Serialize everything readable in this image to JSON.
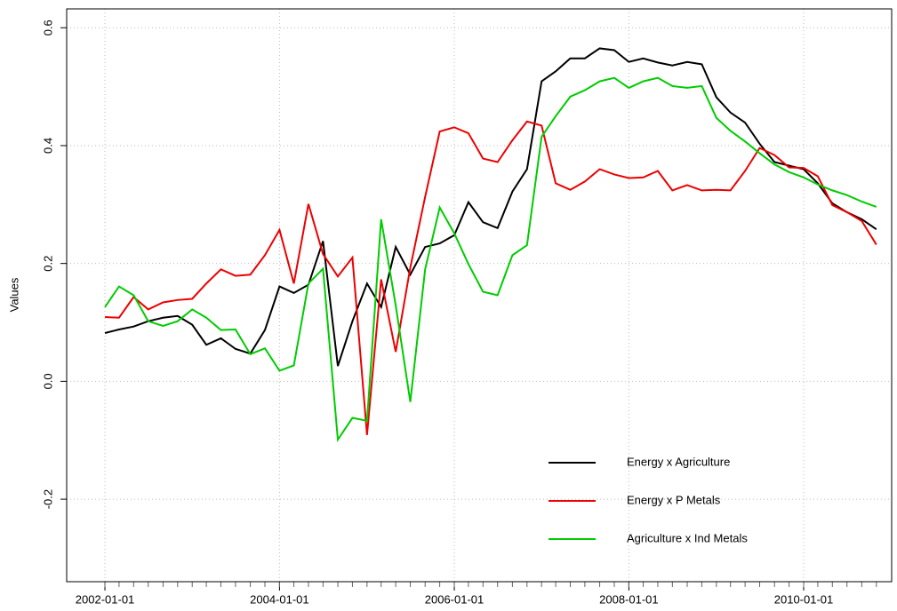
{
  "chart_data": {
    "type": "line",
    "y_label": "Values",
    "x": [
      "2002-01-01",
      "2002-03-01",
      "2002-05-01",
      "2002-07-01",
      "2002-09-01",
      "2002-11-01",
      "2003-01-01",
      "2003-03-01",
      "2003-05-01",
      "2003-07-01",
      "2003-09-01",
      "2003-11-01",
      "2004-01-01",
      "2004-03-01",
      "2004-05-01",
      "2004-07-01",
      "2004-09-01",
      "2004-11-01",
      "2005-01-01",
      "2005-03-01",
      "2005-05-01",
      "2005-07-01",
      "2005-09-01",
      "2005-11-01",
      "2006-01-01",
      "2006-03-01",
      "2006-05-01",
      "2006-07-01",
      "2006-09-01",
      "2006-11-01",
      "2007-01-01",
      "2007-03-01",
      "2007-05-01",
      "2007-07-01",
      "2007-09-01",
      "2007-11-01",
      "2008-01-01",
      "2008-03-01",
      "2008-05-01",
      "2008-07-01",
      "2008-09-01",
      "2008-11-01",
      "2009-01-01",
      "2009-03-01",
      "2009-05-01",
      "2009-07-01",
      "2009-09-01",
      "2009-11-01",
      "2010-01-01",
      "2010-03-01",
      "2010-05-01",
      "2010-07-01",
      "2010-09-01",
      "2010-11-01"
    ],
    "series": [
      {
        "name": "Energy x Agriculture",
        "color": "#000000",
        "values": [
          0.082,
          0.088,
          0.093,
          0.102,
          0.108,
          0.111,
          0.096,
          0.062,
          0.073,
          0.055,
          0.047,
          0.087,
          0.161,
          0.15,
          0.164,
          0.238,
          0.026,
          0.102,
          0.166,
          0.126,
          0.228,
          0.181,
          0.228,
          0.234,
          0.248,
          0.304,
          0.27,
          0.26,
          0.322,
          0.36,
          0.509,
          0.526,
          0.548,
          0.548,
          0.565,
          0.562,
          0.542,
          0.548,
          0.541,
          0.536,
          0.542,
          0.538,
          0.482,
          0.456,
          0.439,
          0.403,
          0.372,
          0.366,
          0.36,
          0.336,
          0.302,
          0.287,
          0.275,
          0.258
        ]
      },
      {
        "name": "Energy x P Metals",
        "color": "#ee0000",
        "values": [
          0.109,
          0.108,
          0.143,
          0.122,
          0.134,
          0.138,
          0.14,
          0.166,
          0.19,
          0.179,
          0.181,
          0.214,
          0.257,
          0.166,
          0.301,
          0.216,
          0.178,
          0.21,
          -0.091,
          0.173,
          0.05,
          0.193,
          0.313,
          0.424,
          0.431,
          0.421,
          0.378,
          0.372,
          0.409,
          0.441,
          0.434,
          0.336,
          0.325,
          0.339,
          0.36,
          0.351,
          0.345,
          0.346,
          0.357,
          0.324,
          0.333,
          0.324,
          0.325,
          0.324,
          0.357,
          0.396,
          0.384,
          0.363,
          0.362,
          0.348,
          0.299,
          0.287,
          0.272,
          0.232
        ]
      },
      {
        "name": "Agriculture x Ind Metals",
        "color": "#00cc00",
        "values": [
          0.126,
          0.161,
          0.146,
          0.102,
          0.094,
          0.102,
          0.122,
          0.108,
          0.087,
          0.088,
          0.046,
          0.056,
          0.018,
          0.027,
          0.166,
          0.191,
          -0.099,
          -0.062,
          -0.067,
          0.275,
          0.129,
          -0.035,
          0.19,
          0.295,
          0.251,
          0.199,
          0.152,
          0.146,
          0.214,
          0.231,
          0.415,
          0.45,
          0.483,
          0.494,
          0.509,
          0.515,
          0.498,
          0.509,
          0.515,
          0.501,
          0.498,
          0.501,
          0.447,
          0.425,
          0.407,
          0.387,
          0.368,
          0.355,
          0.346,
          0.334,
          0.324,
          0.316,
          0.305,
          0.296
        ]
      }
    ],
    "xlim": [
      "2001-07-25",
      "2011-01-04"
    ],
    "xticks": [
      "2002-01-01",
      "2004-01-01",
      "2006-01-01",
      "2008-01-01",
      "2010-01-01"
    ],
    "ylim": [
      -0.34,
      0.632
    ],
    "yticks": [
      -0.2,
      {
        "value": 0,
        "label": "0.0"
      },
      0.2,
      0.4,
      0.6
    ],
    "grid": true,
    "legend": "bottomright"
  }
}
